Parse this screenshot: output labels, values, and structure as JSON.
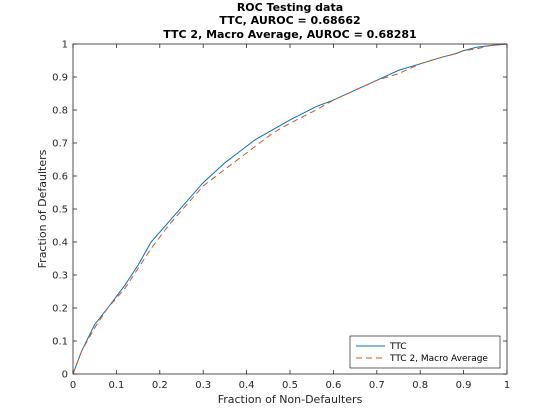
{
  "chart_data": {
    "type": "line",
    "title": [
      "ROC Testing data",
      "TTC, AUROC = 0.68662",
      "TTC 2, Macro Average, AUROC = 0.68281"
    ],
    "xlabel": "Fraction of Non-Defaulters",
    "ylabel": "Fraction of Defaulters",
    "xlim": [
      0,
      1
    ],
    "ylim": [
      0,
      1
    ],
    "xticks": [
      "0",
      "0.1",
      "0.2",
      "0.3",
      "0.4",
      "0.5",
      "0.6",
      "0.7",
      "0.8",
      "0.9",
      "1"
    ],
    "yticks": [
      "0",
      "0.1",
      "0.2",
      "0.3",
      "0.4",
      "0.5",
      "0.6",
      "0.7",
      "0.8",
      "0.9",
      "1"
    ],
    "grid": false,
    "legend_position": "bottom-right",
    "series": [
      {
        "name": "TTC",
        "color": "#0072bd",
        "style": "solid",
        "x": [
          0,
          0.02,
          0.05,
          0.08,
          0.12,
          0.15,
          0.18,
          0.22,
          0.26,
          0.3,
          0.35,
          0.38,
          0.42,
          0.46,
          0.5,
          0.53,
          0.56,
          0.6,
          0.65,
          0.7,
          0.75,
          0.8,
          0.85,
          0.88,
          0.9,
          0.93,
          0.96,
          1
        ],
        "y": [
          0,
          0.07,
          0.15,
          0.2,
          0.27,
          0.33,
          0.4,
          0.46,
          0.52,
          0.58,
          0.64,
          0.67,
          0.71,
          0.74,
          0.77,
          0.79,
          0.81,
          0.83,
          0.86,
          0.89,
          0.92,
          0.94,
          0.96,
          0.97,
          0.98,
          0.99,
          0.995,
          1
        ]
      },
      {
        "name": "TTC 2, Macro Average",
        "color": "#d95319",
        "style": "dashed",
        "x": [
          0,
          0.02,
          0.05,
          0.08,
          0.12,
          0.15,
          0.18,
          0.22,
          0.26,
          0.3,
          0.35,
          0.38,
          0.42,
          0.46,
          0.5,
          0.53,
          0.56,
          0.6,
          0.65,
          0.7,
          0.75,
          0.8,
          0.85,
          0.88,
          0.9,
          0.93,
          0.96,
          1
        ],
        "y": [
          0,
          0.07,
          0.14,
          0.2,
          0.26,
          0.32,
          0.38,
          0.45,
          0.51,
          0.57,
          0.62,
          0.65,
          0.69,
          0.73,
          0.76,
          0.78,
          0.8,
          0.83,
          0.86,
          0.89,
          0.91,
          0.94,
          0.96,
          0.97,
          0.98,
          0.985,
          0.995,
          1
        ]
      }
    ]
  }
}
